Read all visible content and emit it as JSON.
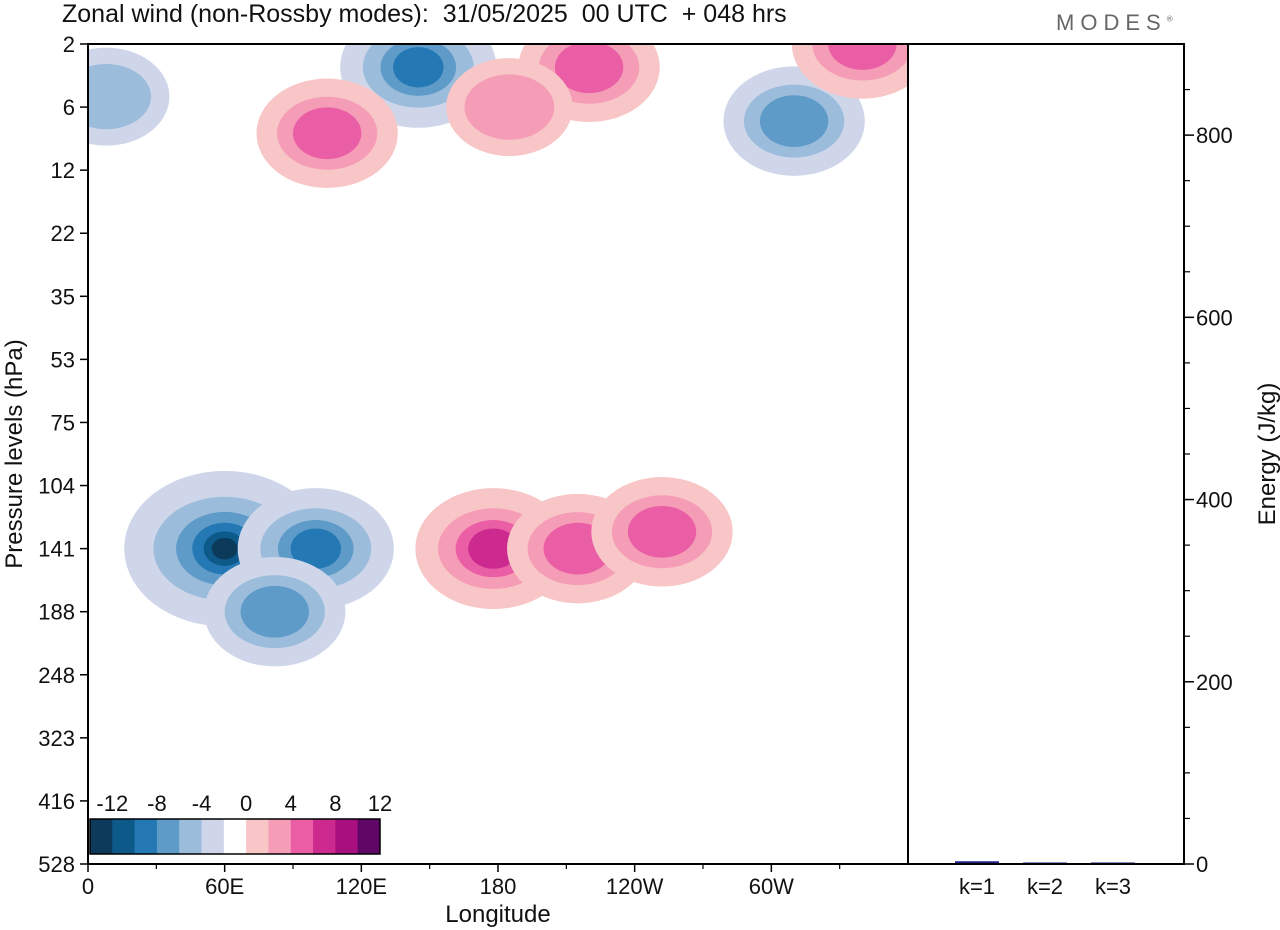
{
  "title": "Zonal wind (non-Rossby modes):  31/05/2025  00 UTC  + 048 hrs",
  "logo": "MODES",
  "logo_mark": "®",
  "colors": {
    "neg": [
      "#0c3a5a",
      "#0d5a8a",
      "#2479b5",
      "#5e9bc8",
      "#9cbcdc",
      "#cfd6ea"
    ],
    "zero": "#ffffff",
    "pos": [
      "#f8c6c7",
      "#f59cb6",
      "#ea5ea6",
      "#cc2a8f",
      "#a7107e",
      "#5f0667"
    ],
    "bar": "#1a1f8c"
  },
  "chart_data": [
    {
      "type": "heatmap",
      "title": "Zonal wind (non-Rossby modes):  31/05/2025  00 UTC  + 048 hrs",
      "xlabel": "Longitude",
      "ylabel": "Pressure levels (hPa)",
      "x_ticks": [
        "0",
        "60E",
        "120E",
        "180",
        "120W",
        "60W"
      ],
      "y_ticks": [
        "2",
        "6",
        "12",
        "22",
        "35",
        "53",
        "75",
        "104",
        "141",
        "188",
        "248",
        "323",
        "416",
        "528"
      ],
      "colorbar_labels": [
        "-12",
        "-8",
        "-4",
        "0",
        "4",
        "8",
        "12"
      ],
      "features": [
        {
          "lon": 60,
          "level": 141,
          "value": -16
        },
        {
          "lon": 100,
          "level": 141,
          "value": -10
        },
        {
          "lon": 82,
          "level": 188,
          "value": -8
        },
        {
          "lon": 145,
          "level": 3,
          "value": -10
        },
        {
          "lon": 310,
          "level": 7,
          "value": -8
        },
        {
          "lon": 8,
          "level": 5,
          "value": -6
        },
        {
          "lon": 105,
          "level": 8,
          "value": 8
        },
        {
          "lon": 178,
          "level": 141,
          "value": 10
        },
        {
          "lon": 215,
          "level": 141,
          "value": 8
        },
        {
          "lon": 252,
          "level": 130,
          "value": 8
        },
        {
          "lon": 220,
          "level": 3,
          "value": 8
        },
        {
          "lon": 340,
          "level": 2,
          "value": 8
        },
        {
          "lon": 185,
          "level": 6,
          "value": 6
        }
      ]
    },
    {
      "type": "bar",
      "categories": [
        "k=1",
        "k=2",
        "k=3"
      ],
      "values": [
        3,
        1,
        0.5
      ],
      "ylabel": "Energy (J/kg)",
      "y_ticks": [
        "0",
        "200",
        "400",
        "600",
        "800"
      ],
      "ylim": [
        0,
        900
      ]
    }
  ]
}
